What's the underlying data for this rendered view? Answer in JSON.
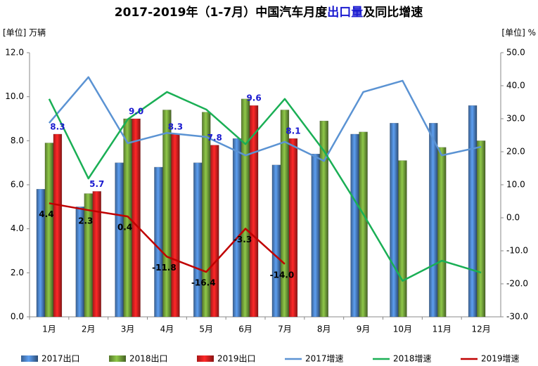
{
  "chart_data": {
    "type": "bar-line",
    "title_parts": [
      "2017-2019年（1-7月）中国汽车月度",
      "出口量",
      "及同比增速"
    ],
    "y_label": "[单位] 万辆",
    "y2_label": "[单位] %",
    "categories": [
      "1月",
      "2月",
      "3月",
      "4月",
      "5月",
      "6月",
      "7月",
      "8月",
      "9月",
      "10月",
      "11月",
      "12月"
    ],
    "ylim": [
      0,
      12
    ],
    "yticks": [
      {
        "value": 0,
        "label": "0.0"
      },
      {
        "value": 2,
        "label": "2.0"
      },
      {
        "value": 4,
        "label": "4.0"
      },
      {
        "value": 6,
        "label": "6.0"
      },
      {
        "value": 8,
        "label": "8.0"
      },
      {
        "value": 10,
        "label": "10.0"
      },
      {
        "value": 12,
        "label": "12.0"
      }
    ],
    "y2lim": [
      -30,
      50
    ],
    "y2ticks": [
      {
        "value": -30,
        "label": "-30.0"
      },
      {
        "value": -20,
        "label": "-20.0"
      },
      {
        "value": -10,
        "label": "-10.0"
      },
      {
        "value": 0,
        "label": "0.0"
      },
      {
        "value": 10,
        "label": "10.0"
      },
      {
        "value": 20,
        "label": "20.0"
      },
      {
        "value": 30,
        "label": "30.0"
      },
      {
        "value": 40,
        "label": "40.0"
      },
      {
        "value": 50,
        "label": "50.0"
      }
    ],
    "grid": false,
    "series": [
      {
        "name": "2017出口",
        "type": "bar",
        "color": "#4a7fc1",
        "values": [
          5.8,
          5.0,
          7.0,
          6.8,
          7.0,
          8.1,
          6.9,
          7.4,
          8.3,
          8.8,
          8.8,
          9.6
        ]
      },
      {
        "name": "2018出口",
        "type": "bar",
        "color": "#72a03a",
        "values": [
          7.9,
          5.6,
          9.0,
          9.4,
          9.3,
          9.9,
          9.4,
          8.9,
          8.4,
          7.1,
          7.7,
          8.0
        ]
      },
      {
        "name": "2019出口",
        "type": "bar",
        "color": "#e02020",
        "values": [
          8.3,
          5.7,
          9.0,
          8.3,
          7.8,
          9.6,
          8.1,
          null,
          null,
          null,
          null,
          null
        ],
        "value_labels": [
          "8.3",
          "5.7",
          "9.0",
          "8.3",
          "7.8",
          "9.6",
          "8.1",
          null,
          null,
          null,
          null,
          null
        ],
        "label_color": "#1a1ad0"
      },
      {
        "name": "2017增速",
        "type": "line",
        "axis": "y2",
        "color": "#5b93d3",
        "values": [
          28.7,
          42.6,
          22.6,
          25.7,
          24.5,
          18.9,
          23.0,
          17.2,
          38.1,
          41.5,
          18.9,
          21.5
        ]
      },
      {
        "name": "2018增速",
        "type": "line",
        "axis": "y2",
        "color": "#1aaf55",
        "values": [
          36.0,
          11.9,
          29.8,
          38.1,
          32.8,
          22.3,
          36.0,
          20.2,
          1.1,
          -19.1,
          -13.0,
          -16.6
        ]
      },
      {
        "name": "2019增速",
        "type": "line",
        "axis": "y2",
        "color": "#c00000",
        "values": [
          4.4,
          2.3,
          0.4,
          -11.8,
          -16.4,
          -3.3,
          -14.0,
          null,
          null,
          null,
          null,
          null
        ],
        "value_labels": [
          "4.4",
          "2.3",
          "0.4",
          "-11.8",
          "-16.4",
          "-3.3",
          "-14.0",
          null,
          null,
          null,
          null,
          null
        ],
        "label_color": "#000000"
      }
    ]
  }
}
